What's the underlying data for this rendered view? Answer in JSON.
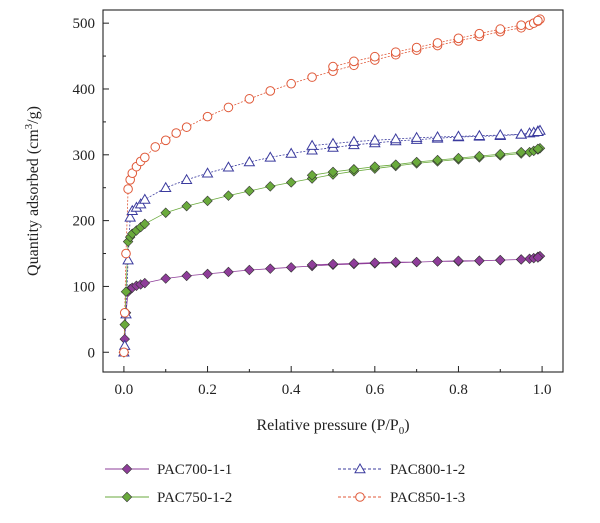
{
  "chart_data": {
    "type": "scatter",
    "xlabel": "Relative pressure (P/P",
    "xlabel_sub": "0",
    "xlabel_end": ")",
    "ylabel": "Quantity adsorbed (cm",
    "ylabel_sup": "3",
    "ylabel_end": "/g)",
    "xlim": [
      -0.05,
      1.05
    ],
    "ylim": [
      -30,
      520
    ],
    "xticks": [
      0.0,
      0.2,
      0.4,
      0.6,
      0.8,
      1.0
    ],
    "xtick_labels": [
      "0.0",
      "0.2",
      "0.4",
      "0.6",
      "0.8",
      "1.0"
    ],
    "yticks": [
      0,
      100,
      200,
      300,
      400,
      500
    ],
    "ytick_labels": [
      "0",
      "100",
      "200",
      "300",
      "400",
      "500"
    ],
    "grid": false,
    "legend_position": "bottom",
    "series": [
      {
        "name": "PAC700-1-1",
        "marker": "diamond",
        "color": "#8e3d99",
        "x": [
          0.0,
          0.002,
          0.005,
          0.01,
          0.015,
          0.02,
          0.03,
          0.04,
          0.05,
          0.1,
          0.15,
          0.2,
          0.25,
          0.3,
          0.35,
          0.4,
          0.45,
          0.5,
          0.55,
          0.6,
          0.65,
          0.7,
          0.75,
          0.8,
          0.85,
          0.9,
          0.95,
          0.97,
          0.98,
          0.99,
          0.995,
          0.99,
          0.95,
          0.9,
          0.85,
          0.8,
          0.75,
          0.7,
          0.65,
          0.6,
          0.55,
          0.5,
          0.45
        ],
        "y": [
          0,
          20,
          60,
          92,
          96,
          98,
          101,
          103,
          105,
          112,
          116,
          119,
          122,
          125,
          127,
          129,
          131,
          133,
          134,
          135,
          136,
          137,
          138,
          138,
          139,
          140,
          141,
          142,
          143,
          145,
          146,
          144,
          141,
          140,
          139,
          139,
          138,
          137,
          137,
          136,
          135,
          134,
          133
        ]
      },
      {
        "name": "PAC750-1-2",
        "marker": "diamond",
        "color": "#6aaa3c",
        "x": [
          0.0,
          0.002,
          0.005,
          0.01,
          0.015,
          0.02,
          0.03,
          0.04,
          0.05,
          0.1,
          0.15,
          0.2,
          0.25,
          0.3,
          0.35,
          0.4,
          0.45,
          0.5,
          0.55,
          0.6,
          0.65,
          0.7,
          0.75,
          0.8,
          0.85,
          0.9,
          0.95,
          0.97,
          0.98,
          0.99,
          0.995,
          0.99,
          0.95,
          0.9,
          0.85,
          0.8,
          0.75,
          0.7,
          0.65,
          0.6,
          0.55,
          0.5,
          0.45
        ],
        "y": [
          0,
          42,
          92,
          168,
          175,
          180,
          185,
          190,
          195,
          212,
          222,
          230,
          238,
          245,
          252,
          258,
          264,
          270,
          275,
          279,
          283,
          287,
          290,
          293,
          296,
          299,
          302,
          304,
          306,
          308,
          310,
          309,
          304,
          301,
          298,
          295,
          292,
          289,
          285,
          282,
          278,
          274,
          269
        ]
      },
      {
        "name": "PAC800-1-2",
        "marker": "triangle",
        "color": "#3b3b9e",
        "x": [
          0.0,
          0.002,
          0.005,
          0.01,
          0.015,
          0.02,
          0.03,
          0.04,
          0.05,
          0.1,
          0.15,
          0.2,
          0.25,
          0.3,
          0.35,
          0.4,
          0.45,
          0.5,
          0.55,
          0.6,
          0.65,
          0.7,
          0.75,
          0.8,
          0.85,
          0.9,
          0.95,
          0.97,
          0.98,
          0.99,
          0.995,
          0.99,
          0.95,
          0.9,
          0.85,
          0.8,
          0.75,
          0.7,
          0.65,
          0.6,
          0.55,
          0.5,
          0.45
        ],
        "y": [
          0,
          10,
          58,
          140,
          205,
          215,
          220,
          225,
          232,
          250,
          262,
          272,
          281,
          289,
          296,
          302,
          307,
          311,
          315,
          318,
          321,
          323,
          325,
          327,
          328,
          329,
          331,
          333,
          334,
          336,
          337,
          335,
          331,
          330,
          329,
          328,
          327,
          326,
          324,
          322,
          320,
          317,
          314
        ]
      },
      {
        "name": "PAC850-1-3",
        "marker": "circle",
        "color": "#e05a3a",
        "x": [
          0.0,
          0.002,
          0.005,
          0.01,
          0.015,
          0.02,
          0.03,
          0.04,
          0.05,
          0.075,
          0.1,
          0.125,
          0.15,
          0.2,
          0.25,
          0.3,
          0.35,
          0.4,
          0.45,
          0.5,
          0.55,
          0.6,
          0.65,
          0.7,
          0.75,
          0.8,
          0.85,
          0.9,
          0.95,
          0.97,
          0.98,
          0.99,
          0.995,
          0.99,
          0.95,
          0.9,
          0.85,
          0.8,
          0.75,
          0.7,
          0.65,
          0.6,
          0.55,
          0.5
        ],
        "y": [
          0,
          60,
          150,
          248,
          262,
          272,
          282,
          290,
          296,
          312,
          322,
          333,
          342,
          358,
          372,
          385,
          397,
          408,
          418,
          427,
          436,
          444,
          452,
          459,
          466,
          473,
          480,
          487,
          493,
          497,
          500,
          503,
          506,
          504,
          497,
          491,
          484,
          477,
          470,
          463,
          456,
          449,
          442,
          434
        ]
      }
    ]
  }
}
